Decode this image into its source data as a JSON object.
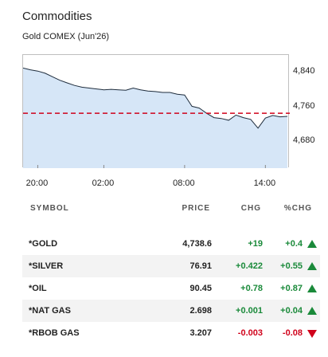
{
  "section_title": "Commodities",
  "instrument": "Gold COMEX (Jun'26)",
  "chart_data": {
    "type": "area",
    "title": "Gold COMEX (Jun'26)",
    "x": [
      0,
      0.5,
      1,
      1.5,
      2,
      2.5,
      3,
      3.5,
      4,
      4.5,
      5,
      5.5,
      6,
      6.5,
      7,
      7.5,
      8,
      8.5,
      9,
      9.5,
      10,
      10.5,
      11,
      11.5,
      12,
      12.5,
      13,
      13.5,
      14,
      14.5,
      15,
      15.5,
      16,
      16.5,
      17,
      17.5,
      18
    ],
    "y": [
      4850,
      4846,
      4843,
      4838,
      4830,
      4822,
      4816,
      4810,
      4806,
      4804,
      4802,
      4800,
      4801,
      4800,
      4799,
      4804,
      4800,
      4797,
      4796,
      4794,
      4794,
      4790,
      4788,
      4762,
      4758,
      4746,
      4736,
      4734,
      4730,
      4742,
      4736,
      4732,
      4712,
      4735,
      4741,
      4738,
      4739
    ],
    "x_tick_labels": [
      "20:00",
      "02:00",
      "08:00",
      "14:00"
    ],
    "x_ticks": [
      1,
      5.5,
      11,
      16.5
    ],
    "y_tick_labels": [
      "4,840",
      "4,760",
      "4,680"
    ],
    "y_ticks": [
      4840,
      4760,
      4680
    ],
    "ylim": [
      4620,
      4880
    ],
    "xlim": [
      0,
      18
    ],
    "reference_line": 4746,
    "reference_color": "#d0021b",
    "fill_color": "#d6e6f7",
    "line_color": "#1f2d3d",
    "grid": false
  },
  "table": {
    "headers": {
      "symbol": "SYMBOL",
      "price": "PRICE",
      "chg": "CHG",
      "pchg": "%CHG"
    },
    "rows": [
      {
        "symbol": "*GOLD",
        "price": "4,738.6",
        "chg": "+19",
        "pchg": "+0.4",
        "dir": "up"
      },
      {
        "symbol": "*SILVER",
        "price": "76.91",
        "chg": "+0.422",
        "pchg": "+0.55",
        "dir": "up"
      },
      {
        "symbol": "*OIL",
        "price": "90.45",
        "chg": "+0.78",
        "pchg": "+0.87",
        "dir": "up"
      },
      {
        "symbol": "*NAT GAS",
        "price": "2.698",
        "chg": "+0.001",
        "pchg": "+0.04",
        "dir": "up"
      },
      {
        "symbol": "*RBOB GAS",
        "price": "3.207",
        "chg": "-0.003",
        "pchg": "-0.08",
        "dir": "down"
      }
    ]
  },
  "colors": {
    "positive": "#1a8a3a",
    "negative": "#d0021b",
    "row_alt": "#f3f3f3"
  }
}
